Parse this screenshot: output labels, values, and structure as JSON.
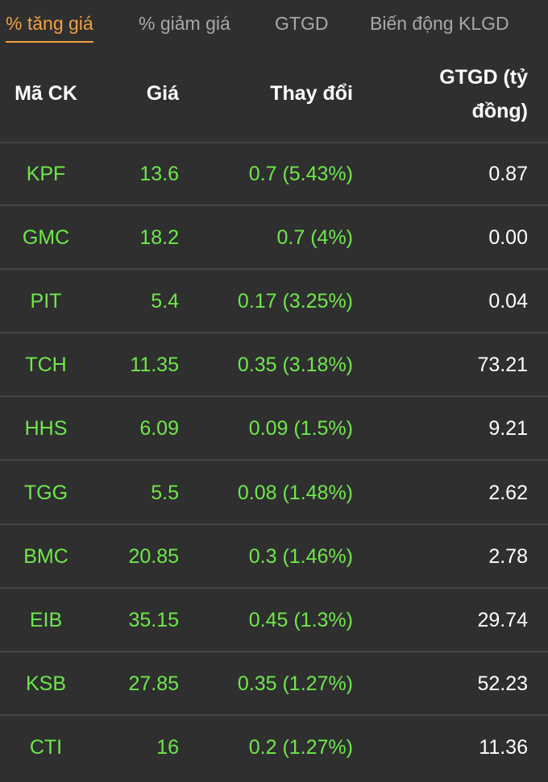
{
  "tabs": [
    "% tăng giá",
    "% giảm giá",
    "GTGD",
    "Biến động KLGD"
  ],
  "table": {
    "header": [
      "Mã CK",
      "Giá",
      "Thay đổi",
      "GTGD (tỷ đồng)"
    ],
    "rows": [
      [
        "KPF",
        "13.6",
        "0.7 (5.43%)",
        "0.87"
      ],
      [
        "GMC",
        "18.2",
        "0.7 (4%)",
        "0.00"
      ],
      [
        "PIT",
        "5.4",
        "0.17 (3.25%)",
        "0.04"
      ],
      [
        "TCH",
        "11.35",
        "0.35 (3.18%)",
        "73.21"
      ],
      [
        "HHS",
        "6.09",
        "0.09 (1.5%)",
        "9.21"
      ],
      [
        "TGG",
        "5.5",
        "0.08 (1.48%)",
        "2.62"
      ],
      [
        "BMC",
        "20.85",
        "0.3 (1.46%)",
        "2.78"
      ],
      [
        "EIB",
        "35.15",
        "0.45 (1.3%)",
        "29.74"
      ],
      [
        "KSB",
        "27.85",
        "0.35 (1.27%)",
        "52.23"
      ],
      [
        "CTI",
        "16",
        "0.2 (1.27%)",
        "11.36"
      ]
    ]
  }
}
